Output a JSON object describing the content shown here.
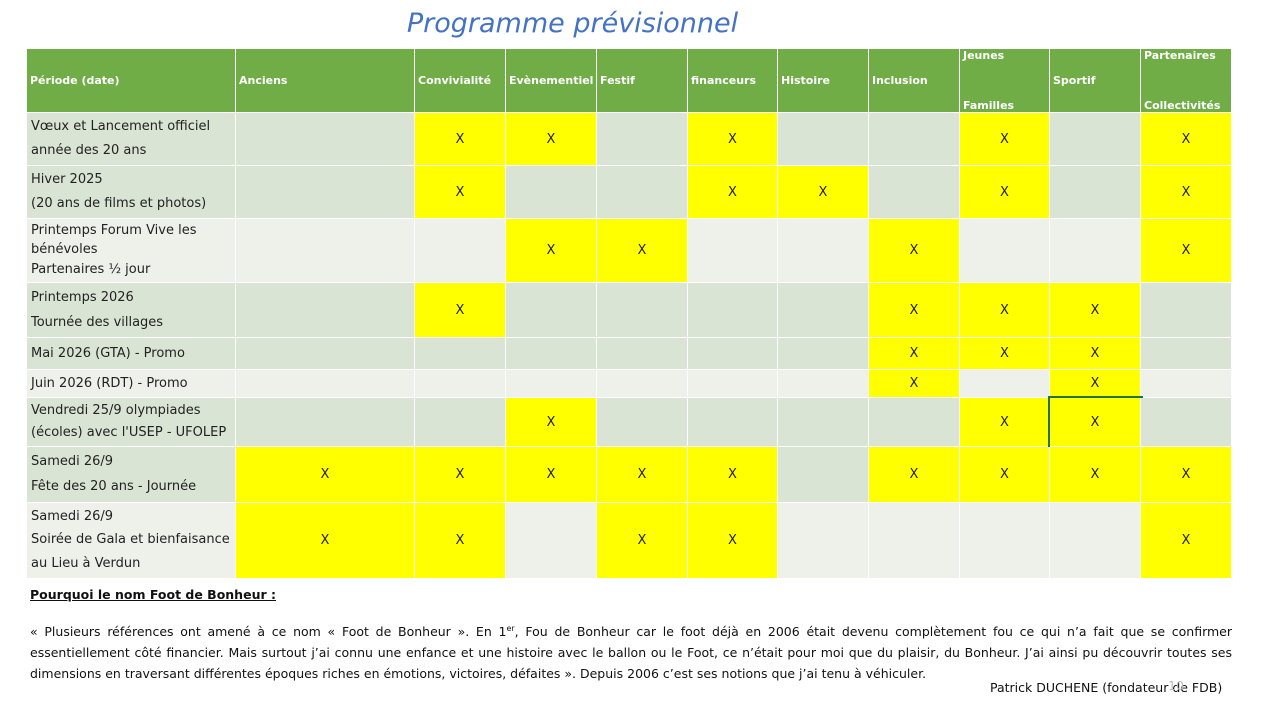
{
  "title": "Programme prévisionnel",
  "table": {
    "header": [
      [
        "Période (date)"
      ],
      [
        "Anciens"
      ],
      [
        "Convivialité"
      ],
      [
        "Evènementiel"
      ],
      [
        "Festif"
      ],
      [
        "financeurs"
      ],
      [
        "Histoire"
      ],
      [
        "Inclusion"
      ],
      [
        "Jeunes",
        "Familles"
      ],
      [
        "Sportif"
      ],
      [
        "Partenaires",
        "Collectivités"
      ]
    ],
    "rows": [
      {
        "label": [
          "Vœux et Lancement officiel",
          "année des 20 ans"
        ],
        "cells": [
          null,
          "X",
          "X",
          null,
          "X",
          null,
          null,
          "X",
          null,
          "X"
        ]
      },
      {
        "label": [
          "Hiver 2025",
          "(20 ans de films et photos)"
        ],
        "cells": [
          null,
          "X",
          null,
          null,
          "X",
          "X",
          null,
          "X",
          null,
          "X"
        ]
      },
      {
        "label": [
          "Printemps Forum        Vive les",
          "bénévoles",
          "Partenaires ½ jour"
        ],
        "cells": [
          null,
          null,
          "X",
          "X",
          null,
          null,
          "X",
          null,
          null,
          "X"
        ]
      },
      {
        "label": [
          "Printemps 2026",
          "Tournée des villages"
        ],
        "cells": [
          null,
          "X",
          null,
          null,
          null,
          null,
          "X",
          "X",
          "X",
          null
        ]
      },
      {
        "label": [
          "Mai 2026 (GTA) - Promo"
        ],
        "cells": [
          null,
          null,
          null,
          null,
          null,
          null,
          "X",
          "X",
          "X",
          null
        ]
      },
      {
        "label": [
          "Juin 2026 (RDT) - Promo"
        ],
        "cells": [
          null,
          null,
          null,
          null,
          null,
          null,
          "X",
          null,
          "X",
          null
        ]
      },
      {
        "label": [
          "Vendredi 25/9 olympiades",
          "(écoles) avec l'USEP - UFOLEP"
        ],
        "cells": [
          null,
          null,
          "X",
          null,
          null,
          null,
          null,
          "X",
          "X",
          null
        ]
      },
      {
        "label": [
          "Samedi 26/9",
          "Fête des 20 ans - Journée"
        ],
        "cells": [
          "X",
          "X",
          "X",
          "X",
          "X",
          null,
          "X",
          "X",
          "X",
          "X"
        ]
      },
      {
        "label": [
          "Samedi 26/9",
          "Soirée de Gala et bienfaisance",
          "au Lieu à Verdun"
        ],
        "cells": [
          "X",
          "X",
          null,
          "X",
          "X",
          null,
          null,
          null,
          null,
          "X"
        ]
      }
    ]
  },
  "footer": {
    "heading": "Pourquoi le nom Foot de Bonheur :",
    "paragraph_start": "« Plusieurs références ont amené à ce nom « Foot de Bonheur ». En 1",
    "superscript": "er",
    "paragraph_end": ", Fou de Bonheur car le foot déjà en 2006 était devenu complètement fou ce qui n’a fait que se confirmer essentiellement côté financier. Mais surtout j’ai connu une enfance et une histoire avec le ballon ou le Foot, ce n’était pour moi que du plaisir, du Bonheur. J’ai ainsi pu découvrir toutes ses dimensions en traversant différentes époques riches en émotions, victoires, défaites ». Depuis 2006 c’est ses notions que j’ai tenu à véhiculer.",
    "signature": "Patrick DUCHENE (fondateur de FDB)",
    "page_number": "10"
  }
}
